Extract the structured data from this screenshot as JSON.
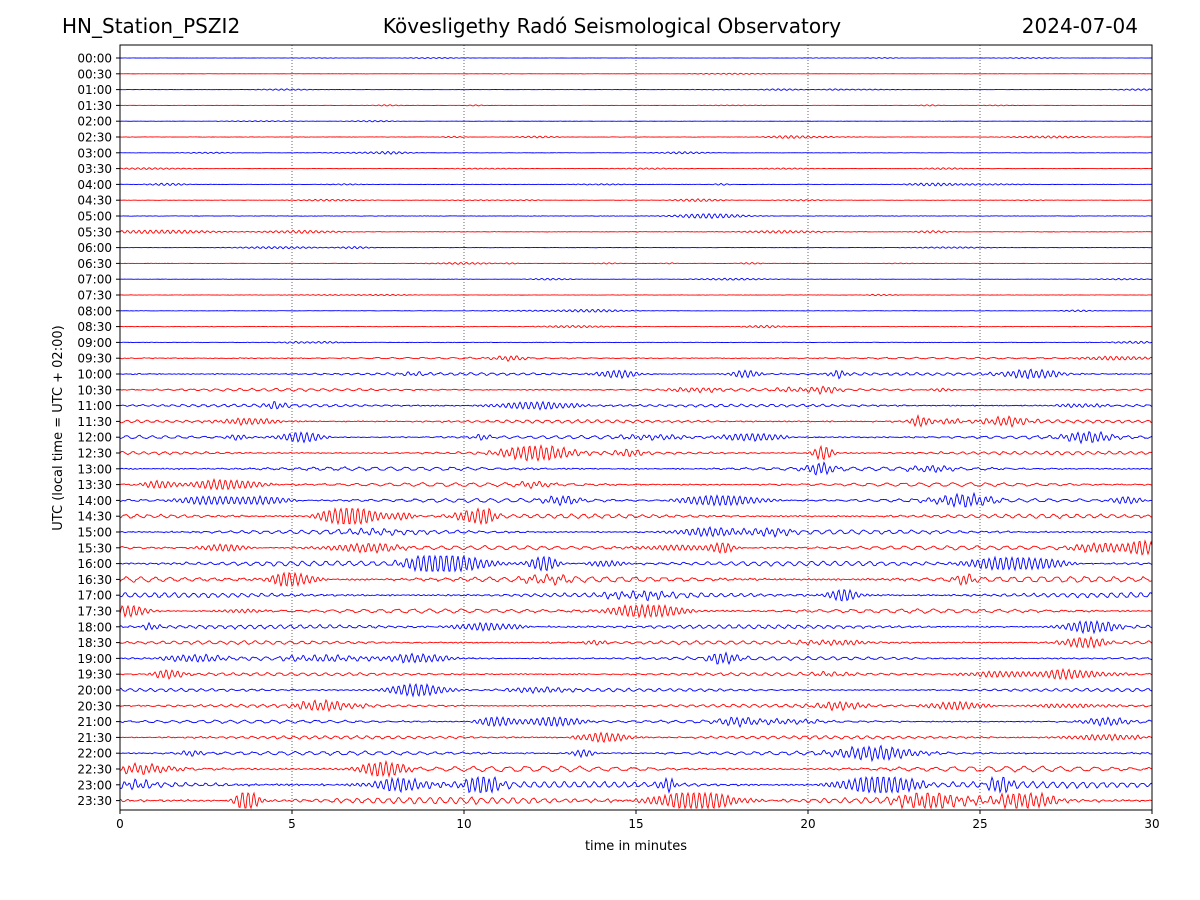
{
  "header": {
    "station": "HN_Station_PSZI2",
    "observatory": "Kövesligethy Radó Seismological Observatory",
    "date": "2024-07-04"
  },
  "chart_data": {
    "type": "line",
    "title": "Kövesligethy Radó Seismological Observatory",
    "xlabel": "time in minutes",
    "ylabel": "UTC (local time = UTC + 02:00)",
    "xlim": [
      0,
      30
    ],
    "x_ticks": [
      0,
      5,
      10,
      15,
      20,
      25,
      30
    ],
    "grid": "vertical dotted lines at 5, 10, 15, 20, 25",
    "row_labels": [
      "00:00",
      "00:30",
      "01:00",
      "01:30",
      "02:00",
      "02:30",
      "03:00",
      "03:30",
      "04:00",
      "04:30",
      "05:00",
      "05:30",
      "06:00",
      "06:30",
      "07:00",
      "07:30",
      "08:00",
      "08:30",
      "09:00",
      "09:30",
      "10:00",
      "10:30",
      "11:00",
      "11:30",
      "12:00",
      "12:30",
      "13:00",
      "13:30",
      "14:00",
      "14:30",
      "15:00",
      "15:30",
      "16:00",
      "16:30",
      "17:00",
      "17:30",
      "18:00",
      "18:30",
      "19:00",
      "19:30",
      "20:00",
      "20:30",
      "21:00",
      "21:30",
      "22:00",
      "22:30",
      "23:00",
      "23:30"
    ],
    "trace_colors": [
      "#0000ff",
      "#ff0000"
    ],
    "relative_noise_amplitude": [
      0.2,
      0.3,
      0.4,
      0.4,
      0.3,
      0.5,
      0.5,
      0.5,
      0.6,
      0.6,
      0.7,
      0.7,
      0.5,
      0.5,
      0.5,
      0.5,
      0.6,
      0.7,
      0.8,
      1.2,
      2.0,
      2.0,
      2.2,
      2.4,
      2.5,
      2.6,
      2.8,
      3.0,
      3.0,
      3.2,
      3.4,
      3.2,
      3.8,
      4.5,
      3.8,
      3.2,
      3.0,
      2.8,
      2.8,
      2.4,
      2.4,
      2.4,
      2.4,
      2.4,
      3.0,
      4.2,
      5.0,
      5.2
    ]
  }
}
